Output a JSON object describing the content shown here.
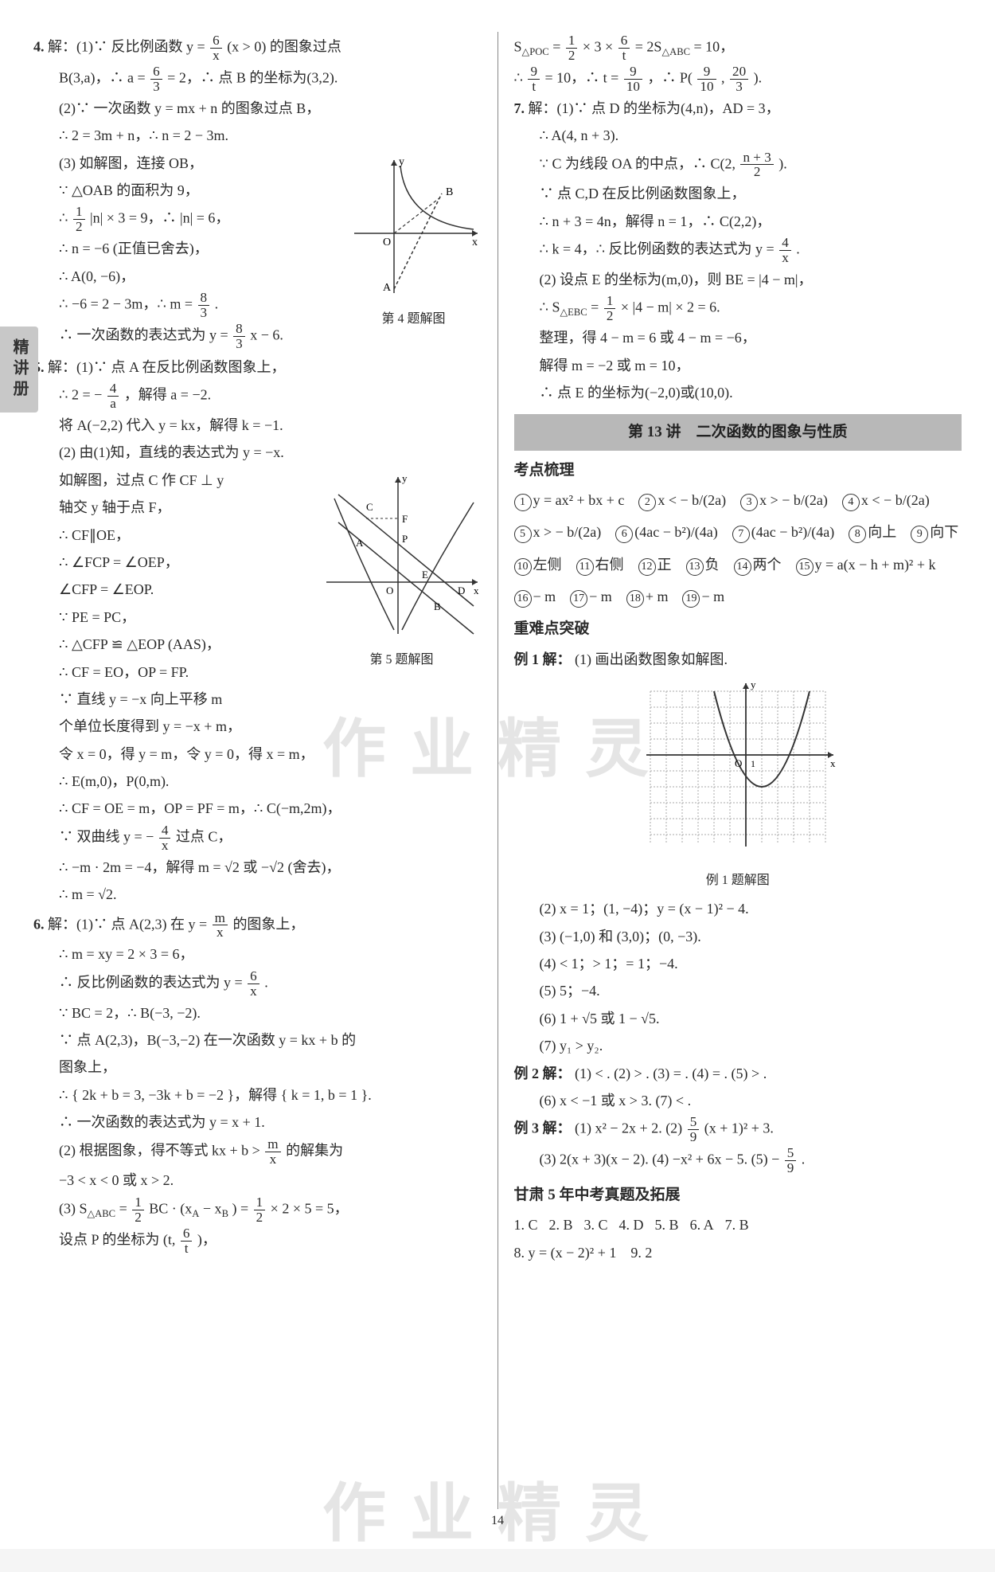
{
  "sideTab": "精讲册",
  "pageNumber": "14",
  "watermark": "作业精灵",
  "left": {
    "p4": {
      "num": "4.",
      "l1a": "解：(1)∵ 反比例函数 y = ",
      "l1_frac_n": "6",
      "l1_frac_d": "x",
      "l1b": " (x > 0) 的图象过点",
      "l2a": "B(3,a)，∴ a = ",
      "l2_frac_n": "6",
      "l2_frac_d": "3",
      "l2b": " = 2，∴ 点 B 的坐标为(3,2).",
      "l3": "(2)∵ 一次函数 y = mx + n 的图象过点 B，",
      "l4": "∴ 2 = 3m + n，∴ n = 2 − 3m.",
      "l5": "(3) 如解图，连接 OB，",
      "l6": "∵ △OAB 的面积为 9，",
      "l7a": "∴ ",
      "l7_frac_n": "1",
      "l7_frac_d": "2",
      "l7b": " |n| × 3 = 9，∴ |n| = 6，",
      "l8": "∴ n = −6 (正值已舍去)，",
      "l9": "∴ A(0, −6)，",
      "l10a": "∴ −6 = 2 − 3m，∴ m = ",
      "l10_frac_n": "8",
      "l10_frac_d": "3",
      "l10b": ".",
      "l11a": "∴ 一次函数的表达式为 y = ",
      "l11_frac_n": "8",
      "l11_frac_d": "3",
      "l11b": "x − 6.",
      "figCaption": "第 4 题解图",
      "figLabels": {
        "y": "y",
        "x": "x",
        "O": "O",
        "A": "A",
        "B": "B"
      }
    },
    "p5": {
      "num": "5.",
      "l1": "解：(1)∵ 点 A 在反比例函数图象上，",
      "l2a": "∴ 2 = − ",
      "l2_frac_n": "4",
      "l2_frac_d": "a",
      "l2b": "，解得 a = −2.",
      "l3": "将 A(−2,2) 代入 y = kx，解得 k = −1.",
      "l4": "(2) 由(1)知，直线的表达式为 y = −x.",
      "l5": "如解图，过点 C 作 CF ⊥ y",
      "l6": "轴交 y 轴于点 F，",
      "l7": "∴ CF∥OE，",
      "l8": "∴ ∠FCP = ∠OEP，",
      "l9": "∠CFP = ∠EOP.",
      "l10": "∵ PE = PC，",
      "l11": "∴ △CFP ≌ △EOP (AAS)，",
      "l12": "∴ CF = EO，OP = FP.",
      "l13": "∵ 直线 y = −x 向上平移 m",
      "l14": "个单位长度得到 y = −x + m，",
      "l15": "令 x = 0，得 y = m，令 y = 0，得 x = m，",
      "l16": "∴ E(m,0)，P(0,m).",
      "l17": "∴ CF = OE = m，OP = PF = m，∴ C(−m,2m)，",
      "l18a": "∵ 双曲线 y = − ",
      "l18_frac_n": "4",
      "l18_frac_d": "x",
      "l18b": " 过点 C，",
      "l19": "∴ −m · 2m = −4，解得 m = √2 或 −√2 (舍去)，",
      "l20": "∴ m = √2.",
      "figCaption": "第 5 题解图",
      "figLabels": {
        "y": "y",
        "x": "x",
        "O": "O",
        "A": "A",
        "B": "B",
        "C": "C",
        "D": "D",
        "E": "E",
        "F": "F",
        "P": "P"
      }
    },
    "p6": {
      "num": "6.",
      "l1a": "解：(1)∵ 点 A(2,3) 在 y = ",
      "l1_frac_n": "m",
      "l1_frac_d": "x",
      "l1b": " 的图象上，",
      "l2": "∴ m = xy = 2 × 3 = 6，",
      "l3a": "∴ 反比例函数的表达式为 y = ",
      "l3_frac_n": "6",
      "l3_frac_d": "x",
      "l3b": ".",
      "l4": "∵ BC = 2，∴ B(−3, −2).",
      "l5": "∵ 点 A(2,3)，B(−3,−2) 在一次函数 y = kx + b 的",
      "l6": "图象上，",
      "l7": "∴ { 2k + b = 3,  −3k + b = −2 }，解得 { k = 1,  b = 1 }.",
      "l8": "∴ 一次函数的表达式为 y = x + 1.",
      "l9a": "(2) 根据图象，得不等式 kx + b > ",
      "l9_frac_n": "m",
      "l9_frac_d": "x",
      "l9b": " 的解集为",
      "l10": "−3 < x < 0 或 x > 2.",
      "l11a": "(3) S",
      "l11_sub": "△ABC",
      "l11b": " = ",
      "l11_frac_n": "1",
      "l11_frac_d": "2",
      "l11c": " BC · (x",
      "l11_sub2": "A",
      "l11d": " − x",
      "l11_sub3": "B",
      "l11e": ") = ",
      "l11_frac2_n": "1",
      "l11_frac2_d": "2",
      "l11f": " × 2 × 5 = 5，",
      "l12a": "设点 P 的坐标为 (t, ",
      "l12_frac_n": "6",
      "l12_frac_d": "t",
      "l12b": ")，"
    }
  },
  "right": {
    "cont": {
      "l1a": "S",
      "l1_sub": "△POC",
      "l1b": " = ",
      "l1_frac_n": "1",
      "l1_frac_d": "2",
      "l1c": " × 3 × ",
      "l1_frac2_n": "6",
      "l1_frac2_d": "t",
      "l1d": " = 2S",
      "l1_sub2": "△ABC",
      "l1e": " = 10，",
      "l2a": "∴ ",
      "l2_frac_n": "9",
      "l2_frac_d": "t",
      "l2b": " = 10，∴ t = ",
      "l2_frac2_n": "9",
      "l2_frac2_d": "10",
      "l2c": "，∴ P(",
      "l2_frac3_n": "9",
      "l2_frac3_d": "10",
      "l2d": ", ",
      "l2_frac4_n": "20",
      "l2_frac4_d": "3",
      "l2e": ")."
    },
    "p7": {
      "num": "7.",
      "l1": "解：(1)∵ 点 D 的坐标为(4,n)，AD = 3，",
      "l2": "∴ A(4, n + 3).",
      "l3a": "∵ C 为线段 OA 的中点，∴ C(2, ",
      "l3_frac_n": "n + 3",
      "l3_frac_d": "2",
      "l3b": ").",
      "l4": "∵ 点 C,D 在反比例函数图象上，",
      "l5": "∴ n + 3 = 4n，解得 n = 1，∴ C(2,2)，",
      "l6a": "∴ k = 4，∴ 反比例函数的表达式为 y = ",
      "l6_frac_n": "4",
      "l6_frac_d": "x",
      "l6b": ".",
      "l7": "(2) 设点 E 的坐标为(m,0)，则 BE = |4 − m|，",
      "l8a": "∴ S",
      "l8_sub": "△EBC",
      "l8b": " = ",
      "l8_frac_n": "1",
      "l8_frac_d": "2",
      "l8c": " × |4 − m| × 2 = 6.",
      "l9": "整理，得 4 − m = 6 或 4 − m = −6，",
      "l10": "解得 m = −2 或 m = 10，",
      "l11": "∴ 点 E 的坐标为(−2,0)或(10,0)."
    },
    "sec13": {
      "title": "第 13 讲　二次函数的图象与性质",
      "kpTitle": "考点梳理",
      "items": [
        "y = ax² + bx + c",
        "x < − b/(2a)",
        "x > − b/(2a)",
        "x < − b/(2a)",
        "x > − b/(2a)",
        "(4ac − b²)/(4a)",
        "(4ac − b²)/(4a)",
        "向上",
        "向下",
        "左侧",
        "右侧",
        "正",
        "负",
        "两个",
        "y = a(x − h + m)² + k",
        "− m",
        "− m",
        "+ m",
        "− m"
      ],
      "hardTitle": "重难点突破",
      "ex1_label": "例 1 解：",
      "ex1_l1": "(1) 画出函数图象如解图.",
      "ex1_fig": "例 1 题解图",
      "ex1_lines": [
        "(2) x = 1；(1, −4)；y = (x − 1)² − 4.",
        "(3) (−1,0) 和 (3,0)；(0, −3).",
        "(4) < 1；> 1；= 1；−4.",
        "(5) 5；−4.",
        "(6) 1 + √5 或 1 − √5.",
        "(7) y₁ > y₂."
      ],
      "ex2_label": "例 2 解：",
      "ex2_l1": "(1) < . (2) > . (3) = . (4) = . (5) > .",
      "ex2_l2": "(6) x < −1 或 x > 3. (7) < .",
      "ex3_label": "例 3 解：",
      "ex3_l1a": "(1) x² − 2x + 2. (2) ",
      "ex3_frac_n": "5",
      "ex3_frac_d": "9",
      "ex3_l1b": "(x + 1)² + 3.",
      "ex3_l2a": "(3) 2(x + 3)(x − 2). (4) −x² + 6x − 5. (5) − ",
      "ex3_frac2_n": "5",
      "ex3_frac2_d": "9",
      "ex3_l2b": ".",
      "gansu_title": "甘肃 5 年中考真题及拓展",
      "gansu_row1": [
        "1. C",
        "2. B",
        "3. C",
        "4. D",
        "5. B",
        "6. A",
        "7. B"
      ],
      "gansu_row2": "8. y = (x − 2)² + 1　9. 2"
    }
  }
}
